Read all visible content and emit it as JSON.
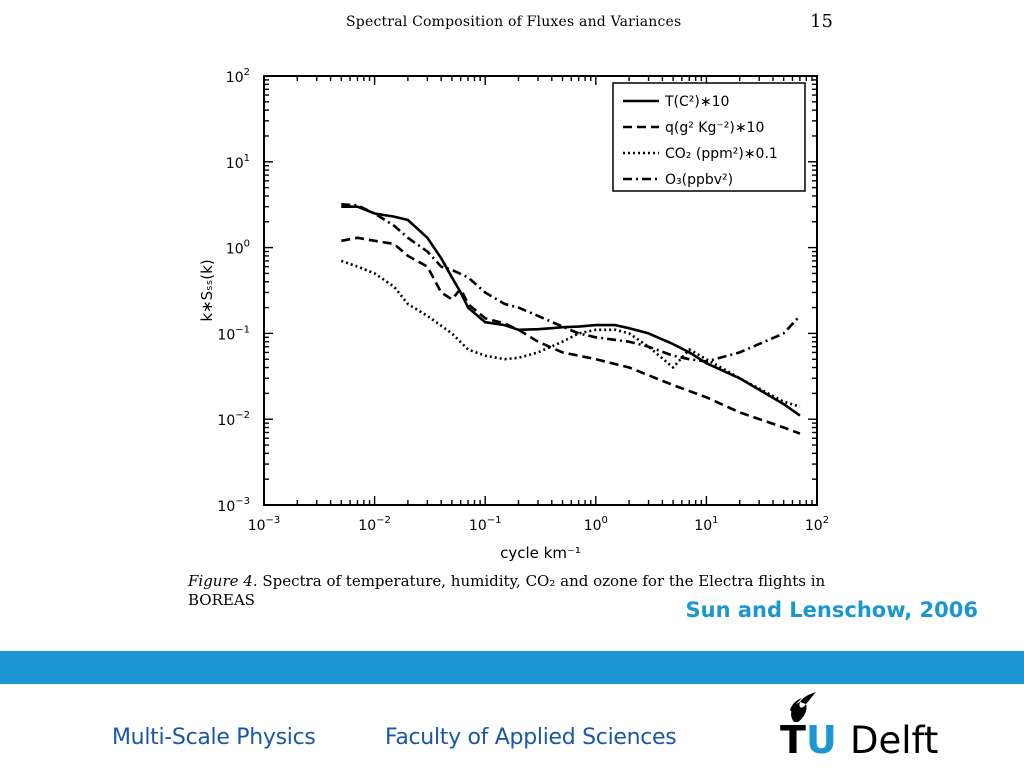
{
  "header": {
    "title": "Spectral Composition of Fluxes and Variances",
    "page_number": "15"
  },
  "caption": {
    "label": "Figure 4.",
    "text": " Spectra of temperature, humidity, CO₂ and ozone for the Electra flights in BOREAS"
  },
  "citation": "Sun and Lenschow, 2006",
  "footer": {
    "group": "Multi-Scale Physics",
    "faculty": "Faculty of Applied Sciences",
    "logo": {
      "t": "T",
      "u": "U",
      "delft": "Delft"
    }
  },
  "colors": {
    "accent": "#1a96d2",
    "footer_text": "#1b57a7"
  },
  "chart_data": {
    "type": "line",
    "x_scale": "log",
    "y_scale": "log",
    "xlim": [
      0.001,
      100
    ],
    "ylim": [
      0.001,
      100
    ],
    "xlabel": "cycle km⁻¹",
    "ylabel": "k∗Sₛₛ(k)",
    "x_ticks": [
      {
        "value": 0.001,
        "base": "10",
        "exp": "−3"
      },
      {
        "value": 0.01,
        "base": "10",
        "exp": "−2"
      },
      {
        "value": 0.1,
        "base": "10",
        "exp": "−1"
      },
      {
        "value": 1,
        "base": "10",
        "exp": "0"
      },
      {
        "value": 10,
        "base": "10",
        "exp": "1"
      },
      {
        "value": 100,
        "base": "10",
        "exp": "2"
      }
    ],
    "y_ticks": [
      {
        "value": 0.001,
        "base": "10",
        "exp": "−3"
      },
      {
        "value": 0.01,
        "base": "10",
        "exp": "−2"
      },
      {
        "value": 0.1,
        "base": "10",
        "exp": "−1"
      },
      {
        "value": 1,
        "base": "10",
        "exp": "0"
      },
      {
        "value": 10,
        "base": "10",
        "exp": "1"
      },
      {
        "value": 100,
        "base": "10",
        "exp": "2"
      }
    ],
    "legend_position": "top-right",
    "series": [
      {
        "name": "T(C²)∗10",
        "style": "solid",
        "x": [
          0.005,
          0.007,
          0.01,
          0.015,
          0.02,
          0.03,
          0.04,
          0.05,
          0.06,
          0.07,
          0.1,
          0.15,
          0.2,
          0.3,
          0.4,
          0.5,
          0.7,
          1,
          1.5,
          2,
          3,
          5,
          7,
          10,
          20,
          50,
          70
        ],
        "y": [
          3.0,
          3.0,
          2.5,
          2.3,
          2.1,
          1.3,
          0.75,
          0.45,
          0.3,
          0.2,
          0.135,
          0.125,
          0.11,
          0.112,
          0.115,
          0.118,
          0.12,
          0.125,
          0.125,
          0.115,
          0.1,
          0.075,
          0.06,
          0.045,
          0.03,
          0.015,
          0.011
        ]
      },
      {
        "name": "q(g² Kg⁻²)∗10",
        "style": "dashed",
        "x": [
          0.005,
          0.007,
          0.01,
          0.015,
          0.02,
          0.03,
          0.04,
          0.05,
          0.06,
          0.07,
          0.1,
          0.15,
          0.2,
          0.3,
          0.5,
          0.7,
          1,
          2,
          5,
          10,
          20,
          50,
          70
        ],
        "y": [
          1.2,
          1.3,
          1.2,
          1.1,
          0.8,
          0.6,
          0.3,
          0.25,
          0.33,
          0.22,
          0.15,
          0.13,
          0.11,
          0.08,
          0.06,
          0.055,
          0.05,
          0.04,
          0.025,
          0.018,
          0.012,
          0.008,
          0.0068
        ]
      },
      {
        "name": "CO₂ (ppm²)∗0.1",
        "style": "dotted",
        "x": [
          0.005,
          0.007,
          0.01,
          0.015,
          0.02,
          0.03,
          0.05,
          0.07,
          0.1,
          0.15,
          0.2,
          0.3,
          0.5,
          0.7,
          1,
          1.5,
          2,
          3,
          5,
          7,
          10,
          20,
          50,
          70
        ],
        "y": [
          0.7,
          0.6,
          0.5,
          0.35,
          0.22,
          0.16,
          0.1,
          0.065,
          0.055,
          0.05,
          0.052,
          0.06,
          0.08,
          0.1,
          0.11,
          0.11,
          0.1,
          0.07,
          0.04,
          0.065,
          0.05,
          0.03,
          0.016,
          0.014
        ]
      },
      {
        "name": "O₃(ppbv²)",
        "style": "dashdot",
        "x": [
          0.005,
          0.007,
          0.01,
          0.015,
          0.02,
          0.03,
          0.04,
          0.05,
          0.07,
          0.1,
          0.15,
          0.2,
          0.3,
          0.5,
          0.7,
          1,
          2,
          3,
          5,
          7,
          10,
          20,
          50,
          70
        ],
        "y": [
          3.2,
          3.1,
          2.5,
          1.8,
          1.3,
          0.9,
          0.6,
          0.55,
          0.45,
          0.3,
          0.22,
          0.2,
          0.16,
          0.12,
          0.1,
          0.09,
          0.08,
          0.07,
          0.055,
          0.05,
          0.047,
          0.06,
          0.1,
          0.16
        ]
      }
    ]
  }
}
